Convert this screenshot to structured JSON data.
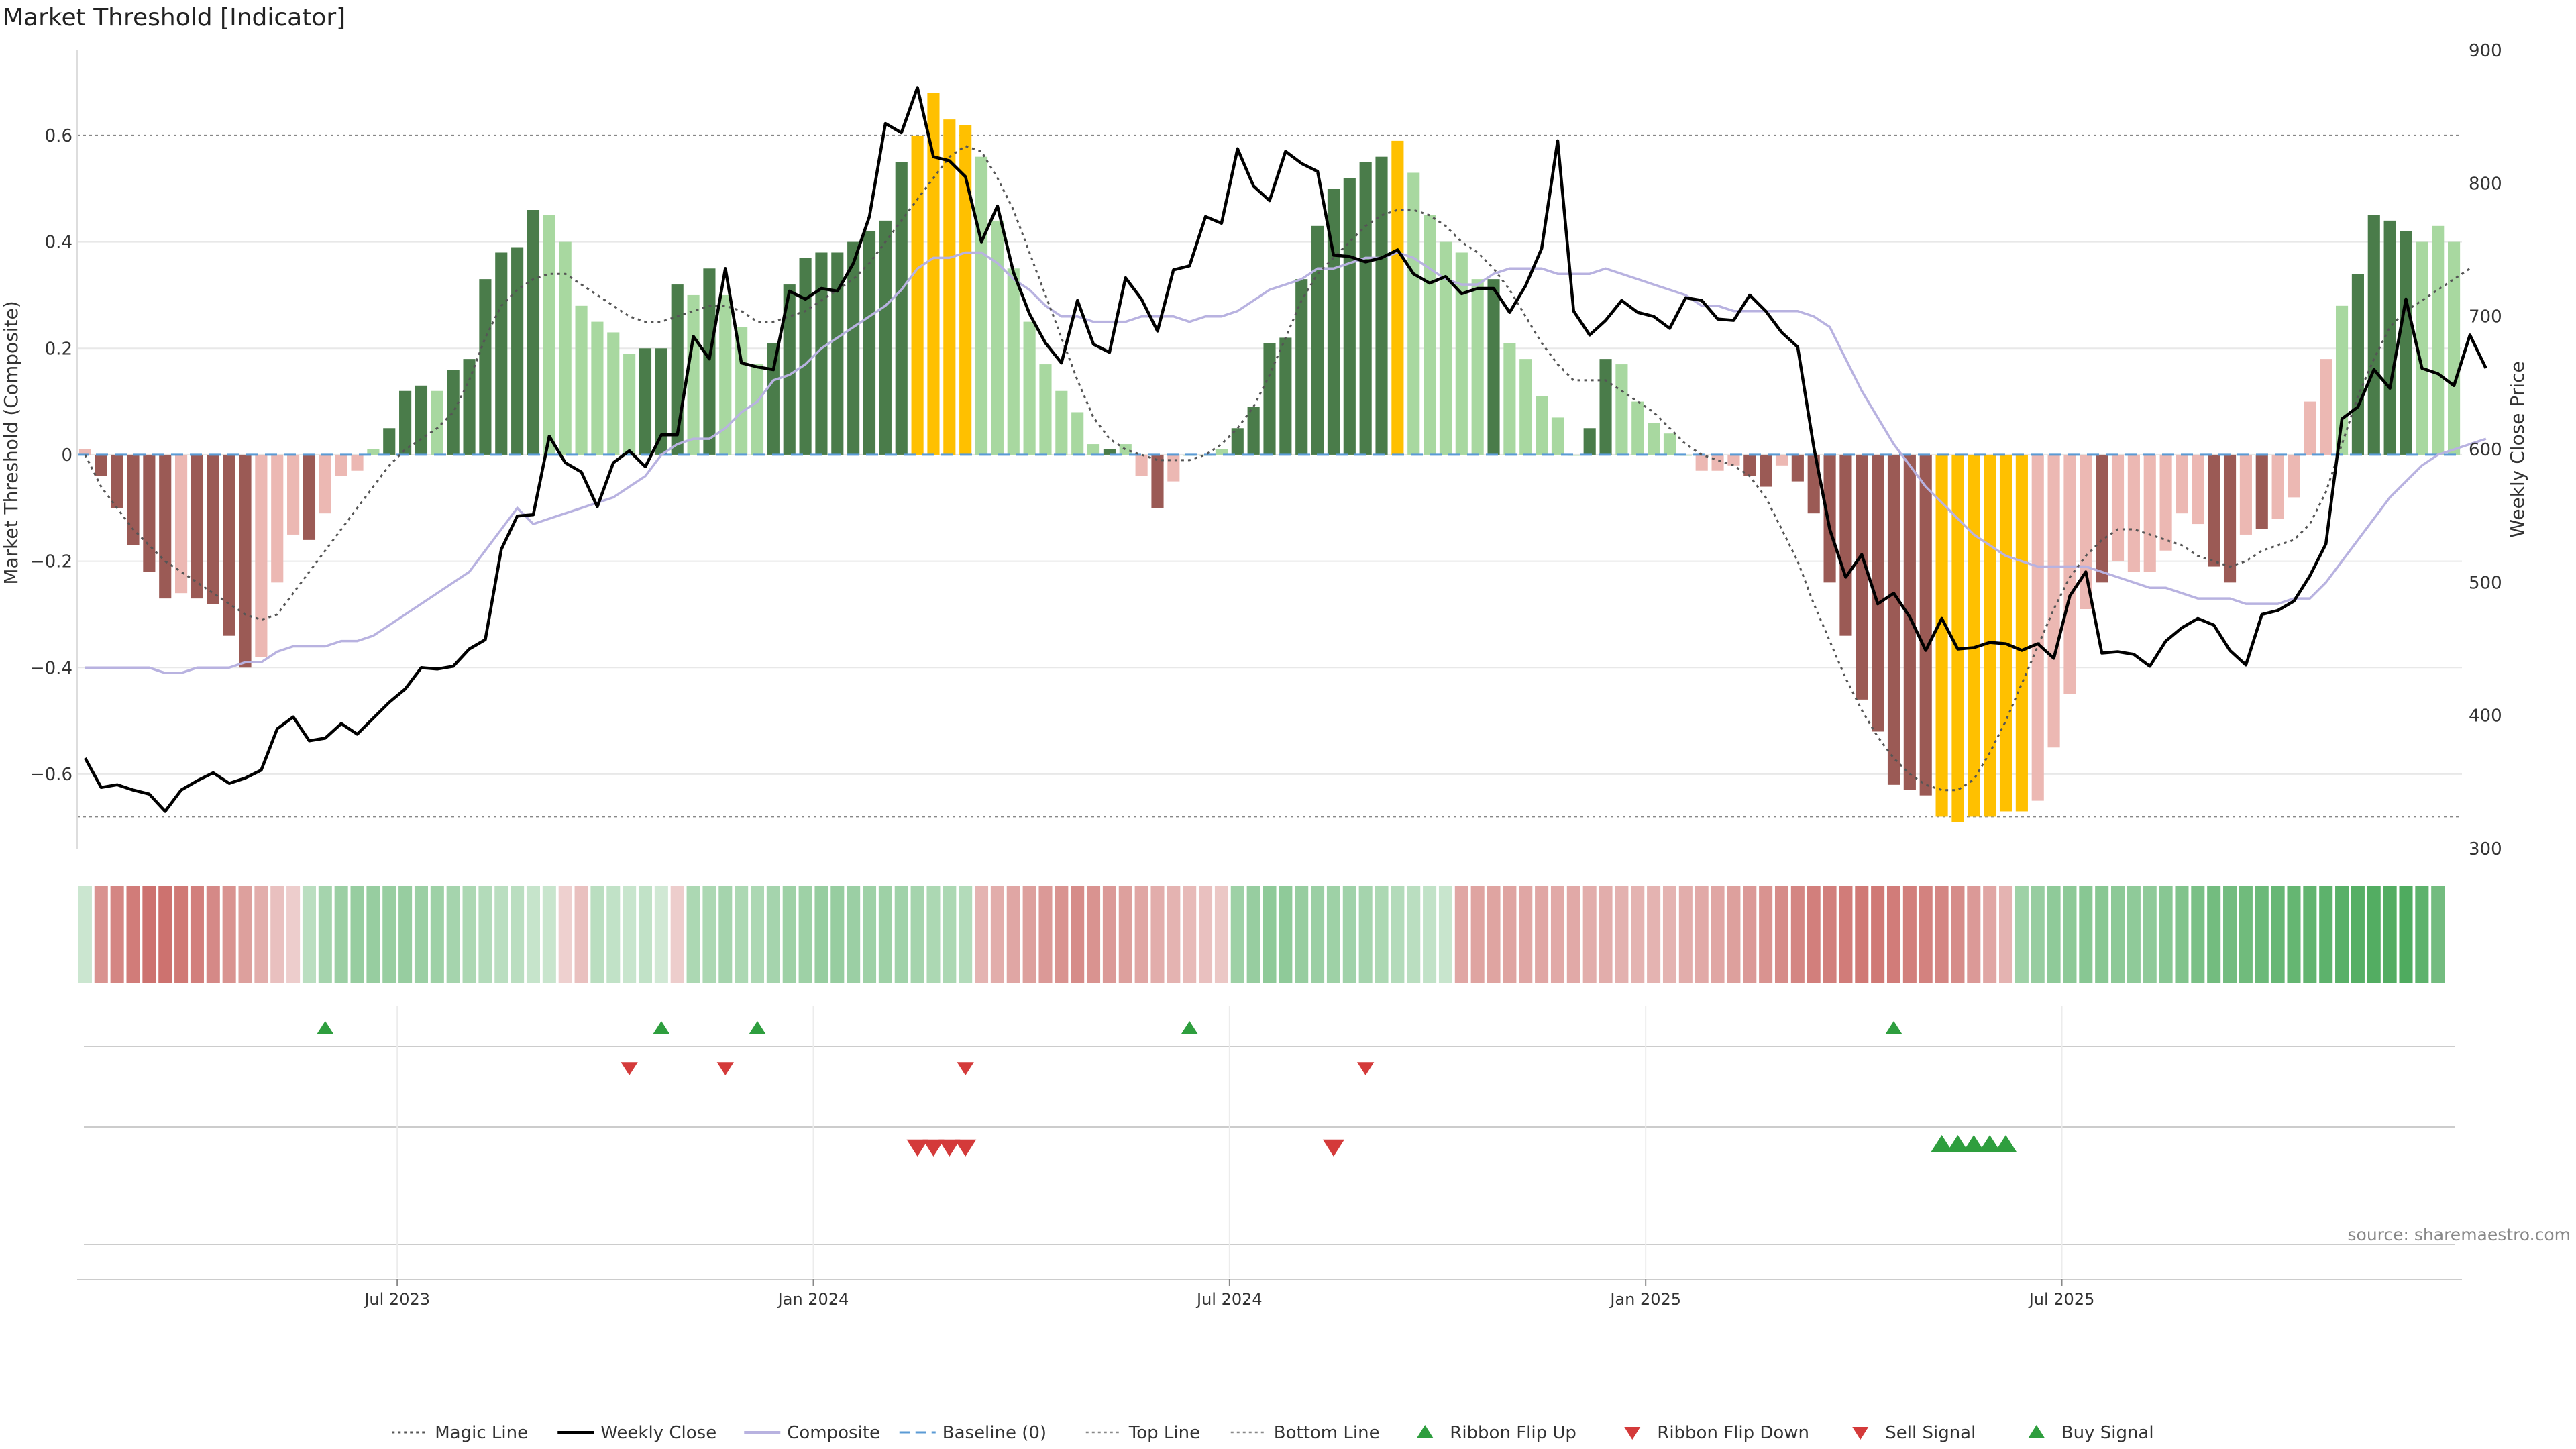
{
  "title": "Market Threshold [Indicator]",
  "source": "source: sharemaestro.com",
  "colors": {
    "strong_green": "#4a7c4a",
    "light_green": "#a8d8a0",
    "strong_red": "#9b5a55",
    "light_red": "#ecb8b3",
    "extreme": "#ffc000",
    "price": "#000000",
    "magic": "#555555",
    "composite": "#b8b2e0",
    "baseline": "#5b9bd5",
    "signal_up": "#2e9e3e",
    "signal_down": "#d43a3a"
  },
  "chart_data": {
    "type": "bar",
    "ylabel": "Market Threshold (Composite)",
    "y2label": "Weekly Close Price",
    "ylim": [
      -0.74,
      0.76
    ],
    "y2lim": [
      300,
      900
    ],
    "yticks": [
      0.6,
      0.4,
      0.2,
      0,
      -0.2,
      -0.4,
      -0.6
    ],
    "ytick_labels": [
      "0.6",
      "0.4",
      "0.2",
      "0",
      "−0.2",
      "−0.4",
      "−0.6"
    ],
    "y2ticks": [
      900,
      800,
      700,
      600,
      500,
      400,
      300
    ],
    "top_line": 0.6,
    "bottom_line": -0.68,
    "x_ticks": [
      {
        "label": "Jul 2023",
        "week": 20
      },
      {
        "label": "Jan 2024",
        "week": 46
      },
      {
        "label": "Jul 2024",
        "week": 72
      },
      {
        "label": "Jan 2025",
        "week": 98
      },
      {
        "label": "Jul 2025",
        "week": 124
      }
    ],
    "values": [
      0.01,
      -0.04,
      -0.1,
      -0.17,
      -0.22,
      -0.27,
      -0.26,
      -0.27,
      -0.28,
      -0.34,
      -0.4,
      -0.38,
      -0.24,
      -0.15,
      -0.16,
      -0.11,
      -0.04,
      -0.03,
      0.01,
      0.05,
      0.12,
      0.13,
      0.12,
      0.16,
      0.18,
      0.33,
      0.38,
      0.39,
      0.46,
      0.45,
      0.4,
      0.28,
      0.25,
      0.23,
      0.19,
      0.2,
      0.2,
      0.32,
      0.3,
      0.35,
      0.3,
      0.24,
      0.17,
      0.21,
      0.32,
      0.37,
      0.38,
      0.38,
      0.4,
      0.42,
      0.44,
      0.55,
      0.6,
      0.68,
      0.63,
      0.62,
      0.56,
      0.44,
      0.35,
      0.25,
      0.17,
      0.12,
      0.08,
      0.02,
      0.01,
      0.02,
      -0.04,
      -0.1,
      -0.05,
      0.0,
      0.0,
      0.01,
      0.05,
      0.09,
      0.21,
      0.22,
      0.33,
      0.43,
      0.5,
      0.52,
      0.55,
      0.56,
      0.59,
      0.53,
      0.45,
      0.4,
      0.38,
      0.33,
      0.33,
      0.21,
      0.18,
      0.11,
      0.07,
      0.0,
      0.05,
      0.18,
      0.17,
      0.1,
      0.06,
      0.04,
      0.0,
      -0.03,
      -0.03,
      -0.02,
      -0.04,
      -0.06,
      -0.02,
      -0.05,
      -0.11,
      -0.24,
      -0.34,
      -0.46,
      -0.52,
      -0.62,
      -0.63,
      -0.64,
      -0.68,
      -0.69,
      -0.68,
      -0.68,
      -0.67,
      -0.67,
      -0.65,
      -0.55,
      -0.45,
      -0.29,
      -0.24,
      -0.2,
      -0.22,
      -0.22,
      -0.18,
      -0.11,
      -0.13,
      -0.21,
      -0.24,
      -0.15,
      -0.14,
      -0.12,
      -0.08,
      0.1,
      0.18,
      0.28,
      0.34,
      0.45,
      0.44,
      0.42,
      0.4,
      0.43,
      0.4
    ],
    "bar_class": [
      "lr",
      "sr",
      "sr",
      "sr",
      "sr",
      "sr",
      "lr",
      "sr",
      "sr",
      "sr",
      "sr",
      "lr",
      "lr",
      "lr",
      "sr",
      "lr",
      "lr",
      "lr",
      "lg",
      "sg",
      "sg",
      "sg",
      "lg",
      "sg",
      "sg",
      "sg",
      "sg",
      "sg",
      "sg",
      "lg",
      "lg",
      "lg",
      "lg",
      "lg",
      "lg",
      "sg",
      "sg",
      "sg",
      "lg",
      "sg",
      "lg",
      "lg",
      "lg",
      "sg",
      "sg",
      "sg",
      "sg",
      "sg",
      "sg",
      "sg",
      "sg",
      "sg",
      "ex",
      "ex",
      "ex",
      "ex",
      "lg",
      "lg",
      "lg",
      "lg",
      "lg",
      "lg",
      "lg",
      "lg",
      "sg",
      "lg",
      "lr",
      "sr",
      "lr",
      "lg",
      "lg",
      "lg",
      "sg",
      "sg",
      "sg",
      "sg",
      "sg",
      "sg",
      "sg",
      "sg",
      "sg",
      "sg",
      "ex",
      "lg",
      "lg",
      "lg",
      "lg",
      "lg",
      "sg",
      "lg",
      "lg",
      "lg",
      "lg",
      "lg",
      "sg",
      "sg",
      "lg",
      "lg",
      "lg",
      "lg",
      "lg",
      "lr",
      "lr",
      "lr",
      "sr",
      "sr",
      "lr",
      "sr",
      "sr",
      "sr",
      "sr",
      "sr",
      "sr",
      "sr",
      "sr",
      "sr",
      "ex",
      "ex",
      "ex",
      "ex",
      "ex",
      "ex",
      "lr",
      "lr",
      "lr",
      "lr",
      "sr",
      "lr",
      "lr",
      "lr",
      "lr",
      "lr",
      "lr",
      "sr",
      "sr",
      "lr",
      "sr",
      "lr",
      "lr",
      "lr",
      "lr",
      "lg",
      "sg",
      "sg",
      "sg",
      "sg",
      "lg",
      "lg",
      "lg",
      "sg",
      "lg"
    ],
    "magic": [
      0.0,
      -0.06,
      -0.1,
      -0.14,
      -0.17,
      -0.2,
      -0.22,
      -0.24,
      -0.26,
      -0.28,
      -0.3,
      -0.31,
      -0.3,
      -0.26,
      -0.22,
      -0.18,
      -0.14,
      -0.1,
      -0.06,
      -0.02,
      0.01,
      0.03,
      0.05,
      0.08,
      0.14,
      0.22,
      0.28,
      0.31,
      0.33,
      0.34,
      0.34,
      0.32,
      0.3,
      0.28,
      0.26,
      0.25,
      0.25,
      0.26,
      0.27,
      0.28,
      0.28,
      0.27,
      0.25,
      0.25,
      0.26,
      0.27,
      0.29,
      0.31,
      0.33,
      0.36,
      0.4,
      0.44,
      0.48,
      0.52,
      0.56,
      0.58,
      0.57,
      0.52,
      0.46,
      0.38,
      0.3,
      0.22,
      0.14,
      0.07,
      0.03,
      0.01,
      0.0,
      -0.01,
      -0.01,
      -0.01,
      0.0,
      0.02,
      0.05,
      0.09,
      0.15,
      0.22,
      0.29,
      0.34,
      0.37,
      0.4,
      0.43,
      0.45,
      0.46,
      0.46,
      0.45,
      0.43,
      0.4,
      0.38,
      0.35,
      0.31,
      0.26,
      0.21,
      0.17,
      0.14,
      0.14,
      0.14,
      0.12,
      0.1,
      0.08,
      0.05,
      0.02,
      0.0,
      -0.01,
      -0.02,
      -0.04,
      -0.08,
      -0.14,
      -0.2,
      -0.28,
      -0.35,
      -0.42,
      -0.48,
      -0.53,
      -0.57,
      -0.6,
      -0.62,
      -0.63,
      -0.63,
      -0.61,
      -0.56,
      -0.5,
      -0.43,
      -0.36,
      -0.29,
      -0.23,
      -0.19,
      -0.16,
      -0.14,
      -0.14,
      -0.15,
      -0.16,
      -0.17,
      -0.19,
      -0.2,
      -0.21,
      -0.2,
      -0.18,
      -0.17,
      -0.16,
      -0.13,
      -0.07,
      0.02,
      0.11,
      0.18,
      0.24,
      0.27,
      0.29,
      0.31,
      0.33,
      0.35
    ],
    "composite": [
      -0.4,
      -0.4,
      -0.4,
      -0.4,
      -0.4,
      -0.41,
      -0.41,
      -0.4,
      -0.4,
      -0.4,
      -0.39,
      -0.39,
      -0.37,
      -0.36,
      -0.36,
      -0.36,
      -0.35,
      -0.35,
      -0.34,
      -0.32,
      -0.3,
      -0.28,
      -0.26,
      -0.24,
      -0.22,
      -0.18,
      -0.14,
      -0.1,
      -0.13,
      -0.12,
      -0.11,
      -0.1,
      -0.09,
      -0.08,
      -0.06,
      -0.04,
      0.0,
      0.02,
      0.03,
      0.03,
      0.05,
      0.08,
      0.1,
      0.14,
      0.15,
      0.17,
      0.2,
      0.22,
      0.24,
      0.26,
      0.28,
      0.31,
      0.35,
      0.37,
      0.37,
      0.38,
      0.38,
      0.36,
      0.33,
      0.31,
      0.28,
      0.26,
      0.26,
      0.25,
      0.25,
      0.25,
      0.26,
      0.26,
      0.26,
      0.25,
      0.26,
      0.26,
      0.27,
      0.29,
      0.31,
      0.32,
      0.33,
      0.35,
      0.35,
      0.36,
      0.37,
      0.37,
      0.38,
      0.37,
      0.35,
      0.33,
      0.32,
      0.32,
      0.34,
      0.35,
      0.35,
      0.35,
      0.34,
      0.34,
      0.34,
      0.35,
      0.34,
      0.33,
      0.32,
      0.31,
      0.3,
      0.28,
      0.28,
      0.27,
      0.27,
      0.27,
      0.27,
      0.27,
      0.26,
      0.24,
      0.18,
      0.12,
      0.07,
      0.02,
      -0.02,
      -0.06,
      -0.09,
      -0.12,
      -0.15,
      -0.17,
      -0.19,
      -0.2,
      -0.21,
      -0.21,
      -0.21,
      -0.21,
      -0.22,
      -0.23,
      -0.24,
      -0.25,
      -0.25,
      -0.26,
      -0.27,
      -0.27,
      -0.27,
      -0.28,
      -0.28,
      -0.28,
      -0.27,
      -0.27,
      -0.24,
      -0.2,
      -0.16,
      -0.12,
      -0.08,
      -0.05,
      -0.02,
      0.0,
      0.01,
      0.02,
      0.03
    ],
    "price": [
      368,
      346,
      348,
      344,
      341,
      328,
      344,
      351,
      357,
      349,
      353,
      359,
      390,
      399,
      381,
      383,
      394,
      386,
      398,
      410,
      420,
      436,
      435,
      437,
      450,
      457,
      525,
      550,
      551,
      610,
      590,
      583,
      557,
      590,
      599,
      587,
      611,
      611,
      685,
      668,
      736,
      665,
      662,
      660,
      719,
      713,
      721,
      719,
      740,
      775,
      845,
      838,
      872,
      820,
      817,
      805,
      756,
      783,
      733,
      702,
      680,
      665,
      712,
      679,
      673,
      729,
      713,
      689,
      735,
      738,
      775,
      770,
      826,
      798,
      787,
      824,
      815,
      809,
      746,
      745,
      741,
      744,
      750,
      732,
      725,
      730,
      717,
      721,
      721,
      703,
      723,
      751,
      832,
      704,
      686,
      697,
      712,
      703,
      700,
      691,
      714,
      712,
      698,
      697,
      716,
      704,
      688,
      677,
      602,
      540,
      504,
      521,
      484,
      492,
      474,
      449,
      473,
      450,
      451,
      455,
      454,
      449,
      454,
      443,
      490,
      508,
      447,
      448,
      446,
      437,
      456,
      466,
      473,
      468,
      449,
      438,
      476,
      479,
      486,
      505,
      529,
      623,
      632,
      660,
      646,
      713,
      661,
      657,
      648,
      686,
      661
    ],
    "ribbon_intensity": [
      0.08,
      -0.55,
      -0.65,
      -0.72,
      -0.8,
      -0.8,
      -0.75,
      -0.7,
      -0.62,
      -0.55,
      -0.45,
      -0.35,
      -0.2,
      -0.1,
      0.2,
      0.35,
      0.42,
      0.45,
      0.45,
      0.44,
      0.45,
      0.42,
      0.4,
      0.35,
      0.3,
      0.25,
      0.2,
      0.2,
      0.12,
      0.1,
      -0.08,
      -0.2,
      0.2,
      0.15,
      0.1,
      0.15,
      0.05,
      -0.1,
      0.3,
      0.3,
      0.35,
      0.3,
      0.3,
      0.35,
      0.4,
      0.4,
      0.45,
      0.45,
      0.42,
      0.4,
      0.4,
      0.38,
      0.35,
      0.3,
      0.3,
      0.25,
      -0.3,
      -0.35,
      -0.4,
      -0.45,
      -0.5,
      -0.55,
      -0.6,
      -0.55,
      -0.5,
      -0.45,
      -0.4,
      -0.35,
      -0.3,
      -0.25,
      -0.2,
      -0.15,
      0.4,
      0.45,
      0.5,
      0.5,
      0.45,
      0.42,
      0.4,
      0.38,
      0.35,
      0.3,
      0.25,
      0.2,
      0.15,
      0.1,
      -0.4,
      -0.42,
      -0.42,
      -0.42,
      -0.4,
      -0.4,
      -0.38,
      -0.38,
      -0.35,
      -0.35,
      -0.32,
      -0.3,
      -0.3,
      -0.3,
      -0.35,
      -0.38,
      -0.4,
      -0.45,
      -0.5,
      -0.55,
      -0.6,
      -0.65,
      -0.7,
      -0.7,
      -0.72,
      -0.75,
      -0.75,
      -0.72,
      -0.7,
      -0.68,
      -0.65,
      -0.6,
      -0.5,
      -0.4,
      -0.3,
      0.4,
      0.45,
      0.5,
      0.52,
      0.55,
      0.55,
      0.52,
      0.5,
      0.5,
      0.55,
      0.6,
      0.65,
      0.7,
      0.7,
      0.72,
      0.75,
      0.78,
      0.8,
      0.82,
      0.85,
      0.88,
      0.9,
      0.92,
      0.92,
      0.95,
      0.85,
      0.7
    ],
    "ribbon_flip_up": [
      15,
      36,
      42,
      69,
      113
    ],
    "ribbon_flip_down": [
      34,
      40,
      55,
      80
    ],
    "sell_signal": [
      52,
      53,
      54,
      55,
      78
    ],
    "buy_signal": [
      116,
      117,
      118,
      119,
      120
    ],
    "legend": [
      {
        "label": "Magic Line",
        "kind": "dotted-dark"
      },
      {
        "label": "Weekly Close",
        "kind": "solid-black"
      },
      {
        "label": "Composite",
        "kind": "solid-lavender"
      },
      {
        "label": "Baseline (0)",
        "kind": "dashed-blue"
      },
      {
        "label": "Top Line",
        "kind": "dotted-grey"
      },
      {
        "label": "Bottom Line",
        "kind": "dotted-grey"
      },
      {
        "label": "Ribbon Flip Up",
        "kind": "tri-up-green"
      },
      {
        "label": "Ribbon Flip Down",
        "kind": "tri-down-red"
      },
      {
        "label": "Sell Signal",
        "kind": "tri-down-red"
      },
      {
        "label": "Buy Signal",
        "kind": "tri-up-green"
      }
    ]
  }
}
